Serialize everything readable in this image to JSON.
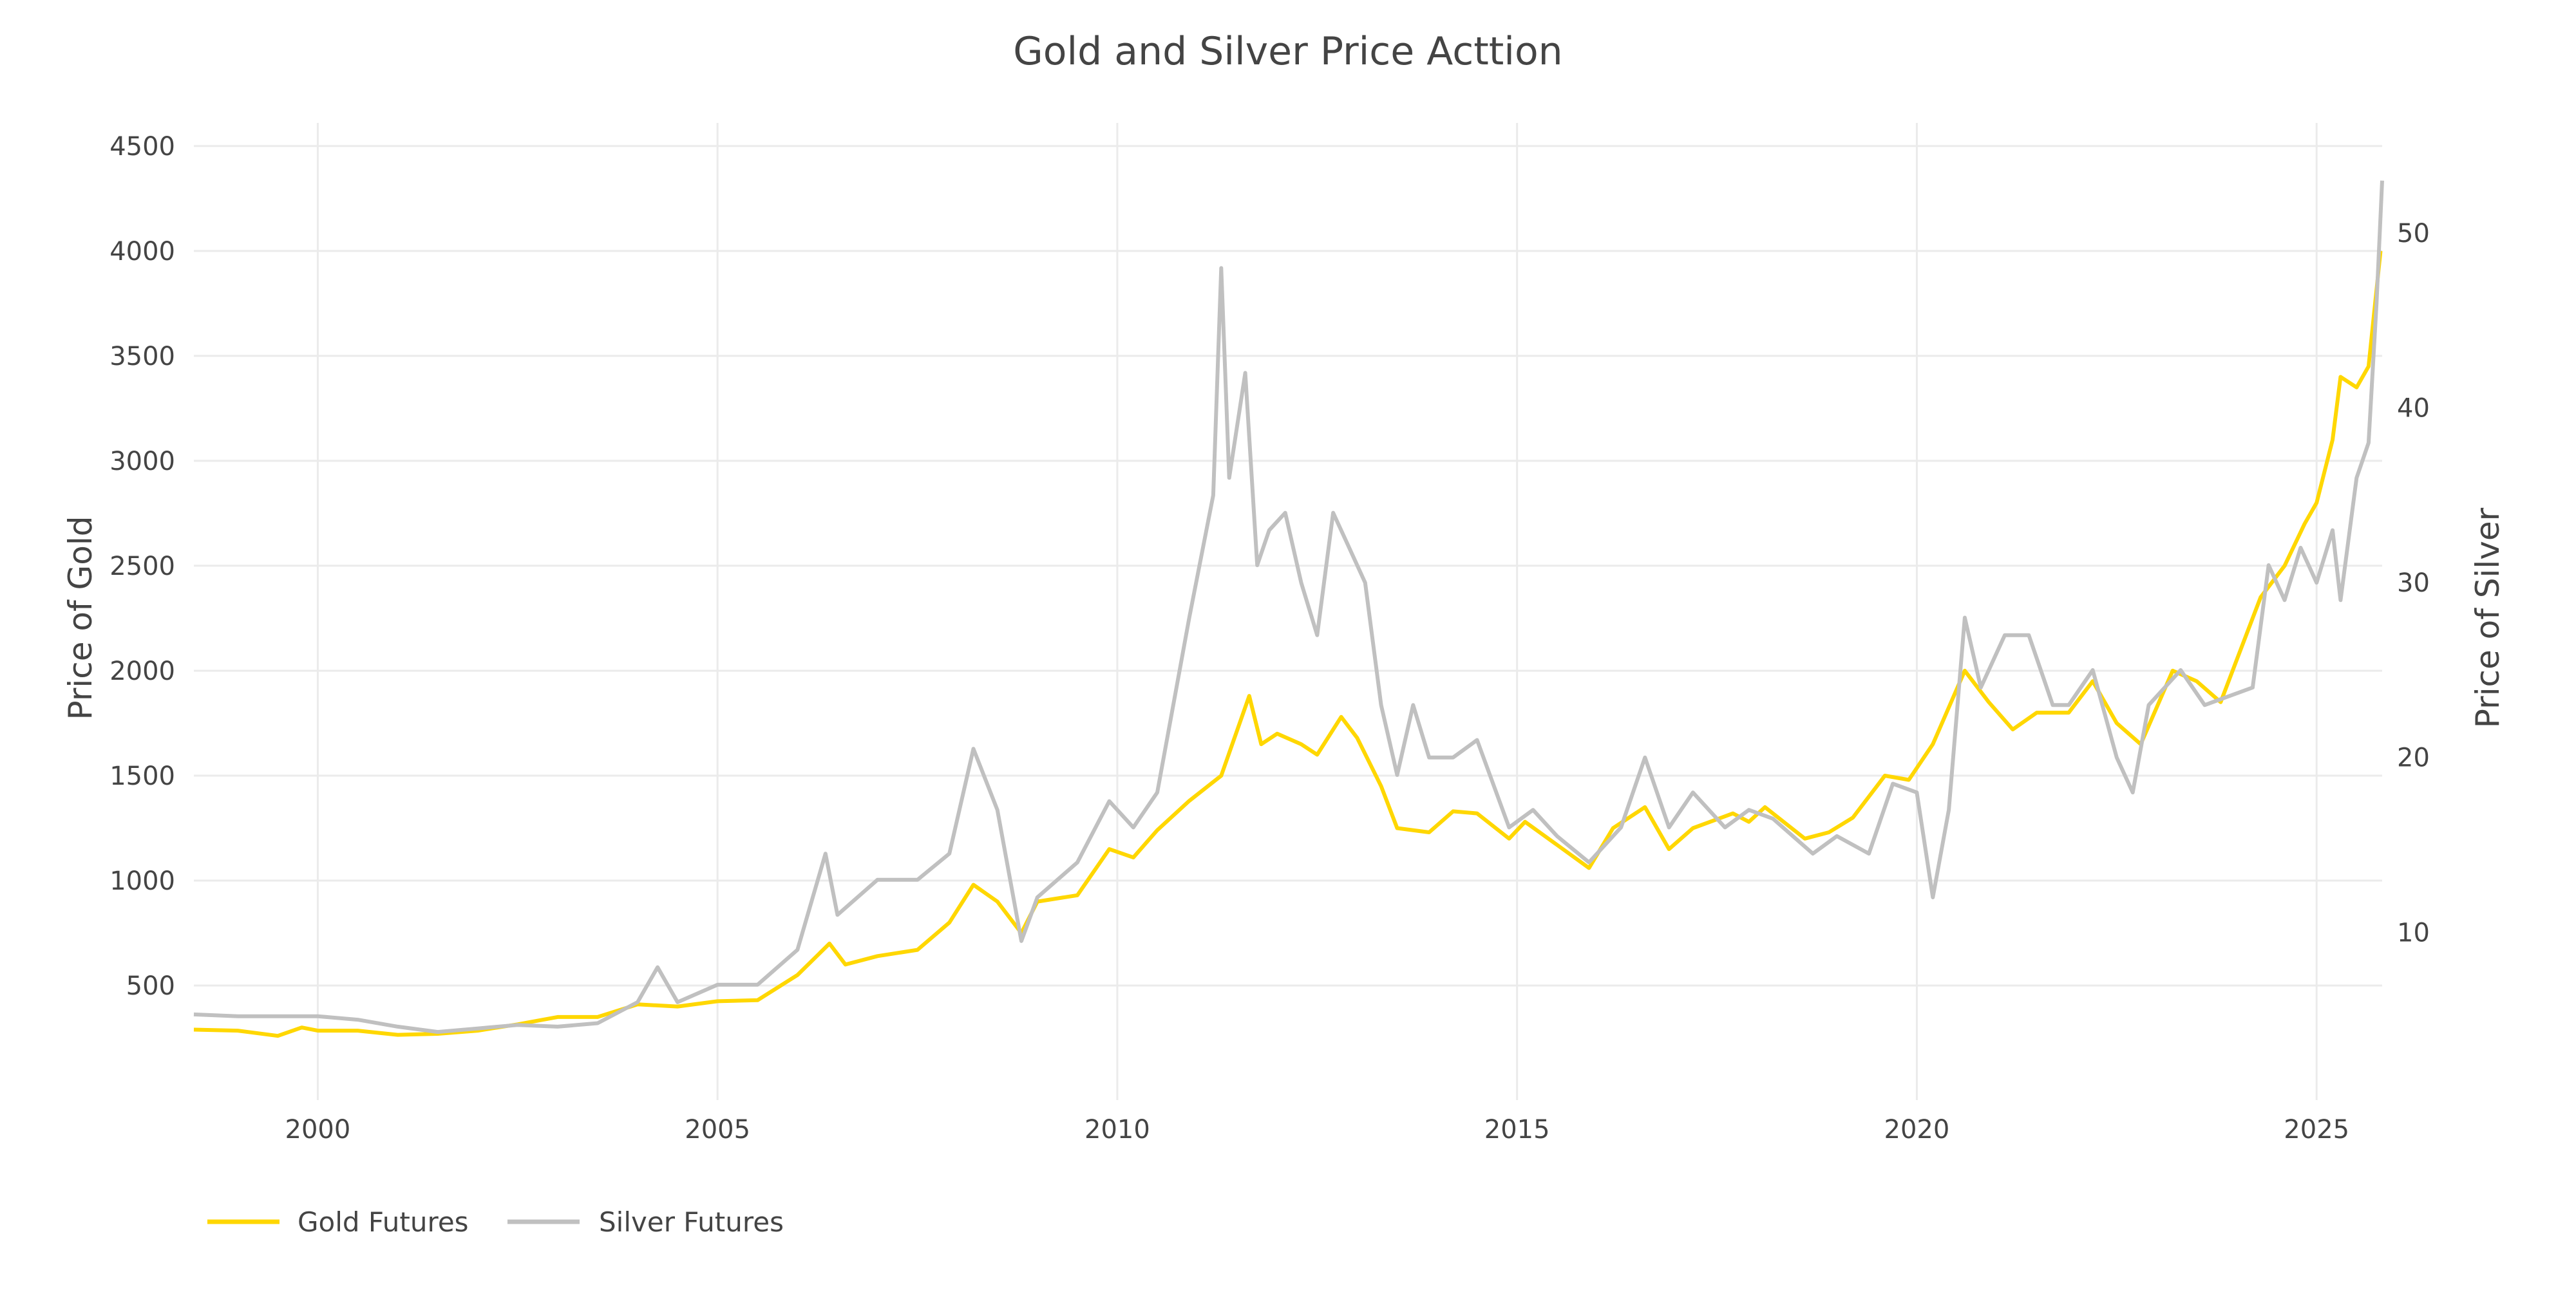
{
  "chart_data": {
    "type": "line",
    "title": "Gold and Silver Price Acttion",
    "xlabel": "",
    "ylabel": "Price of Gold",
    "y2label": "Price of Silver",
    "xlim": [
      1998.45,
      2025.82
    ],
    "ylim": [
      -46,
      4610
    ],
    "y2lim": [
      0.4,
      56.3
    ],
    "x_ticks": [
      2000,
      2005,
      2010,
      2015,
      2020,
      2025
    ],
    "y_ticks": [
      500,
      1000,
      1500,
      2000,
      2500,
      3000,
      3500,
      4000,
      4500
    ],
    "y2_ticks": [
      10,
      20,
      30,
      40,
      50
    ],
    "grid": true,
    "legend_position": "bottom-left",
    "colors": {
      "gold": "#FFD700",
      "silver": "#C0C0C0",
      "grid": "#EBEBEB",
      "text": "#444444"
    },
    "series": [
      {
        "name": "Gold Futures",
        "axis": "left",
        "x": [
          1998.45,
          1999,
          1999.5,
          1999.8,
          2000,
          2000.5,
          2001,
          2001.5,
          2002,
          2002.5,
          2003,
          2003.5,
          2004,
          2004.5,
          2005,
          2005.5,
          2006,
          2006.4,
          2006.6,
          2007,
          2007.5,
          2007.9,
          2008.2,
          2008.5,
          2008.8,
          2009,
          2009.5,
          2009.9,
          2010.2,
          2010.5,
          2010.9,
          2011.3,
          2011.65,
          2011.8,
          2012,
          2012.3,
          2012.5,
          2012.8,
          2013,
          2013.3,
          2013.5,
          2013.9,
          2014.2,
          2014.5,
          2014.9,
          2015.1,
          2015.5,
          2015.9,
          2016.2,
          2016.6,
          2016.9,
          2017.2,
          2017.7,
          2017.9,
          2018.1,
          2018.6,
          2018.9,
          2019.2,
          2019.6,
          2019.9,
          2020.2,
          2020.6,
          2020.9,
          2021.2,
          2021.5,
          2021.9,
          2022.2,
          2022.5,
          2022.8,
          2023.2,
          2023.5,
          2023.8,
          2024,
          2024.3,
          2024.6,
          2024.85,
          2025,
          2025.2,
          2025.3,
          2025.5,
          2025.65,
          2025.8
        ],
        "values": [
          290,
          285,
          260,
          300,
          285,
          285,
          265,
          270,
          285,
          315,
          350,
          350,
          410,
          400,
          425,
          430,
          550,
          700,
          600,
          640,
          670,
          800,
          980,
          900,
          750,
          900,
          930,
          1150,
          1110,
          1240,
          1380,
          1500,
          1880,
          1650,
          1700,
          1650,
          1600,
          1780,
          1680,
          1450,
          1250,
          1230,
          1330,
          1320,
          1200,
          1280,
          1170,
          1060,
          1250,
          1350,
          1150,
          1250,
          1320,
          1280,
          1350,
          1200,
          1230,
          1300,
          1500,
          1480,
          1650,
          2000,
          1850,
          1720,
          1800,
          1800,
          1950,
          1750,
          1650,
          2000,
          1950,
          1850,
          2050,
          2350,
          2500,
          2700,
          2800,
          3100,
          3400,
          3350,
          3450,
          4000
        ]
      },
      {
        "name": "Silver Futures",
        "axis": "right",
        "x": [
          1998.45,
          1999,
          1999.5,
          2000,
          2000.5,
          2001,
          2001.5,
          2002,
          2002.5,
          2003,
          2003.5,
          2004,
          2004.25,
          2004.5,
          2005,
          2005.5,
          2006,
          2006.35,
          2006.5,
          2007,
          2007.5,
          2007.9,
          2008.2,
          2008.5,
          2008.8,
          2009,
          2009.5,
          2009.9,
          2010.2,
          2010.5,
          2010.9,
          2011.2,
          2011.3,
          2011.4,
          2011.6,
          2011.75,
          2011.9,
          2012.1,
          2012.3,
          2012.5,
          2012.7,
          2012.9,
          2013.1,
          2013.3,
          2013.5,
          2013.7,
          2013.9,
          2014.2,
          2014.5,
          2014.9,
          2015.2,
          2015.5,
          2015.9,
          2016.3,
          2016.6,
          2016.9,
          2017.2,
          2017.6,
          2017.9,
          2018.2,
          2018.7,
          2019,
          2019.4,
          2019.7,
          2020,
          2020.2,
          2020.4,
          2020.6,
          2020.8,
          2021.1,
          2021.4,
          2021.7,
          2021.9,
          2022.2,
          2022.5,
          2022.7,
          2022.9,
          2023.3,
          2023.6,
          2023.9,
          2024.2,
          2024.4,
          2024.6,
          2024.8,
          2025,
          2025.2,
          2025.3,
          2025.5,
          2025.65,
          2025.75,
          2025.82
        ],
        "values": [
          5.3,
          5.2,
          5.2,
          5.2,
          5.0,
          4.6,
          4.3,
          4.5,
          4.7,
          4.6,
          4.8,
          6.0,
          8.0,
          6.0,
          7.0,
          7.0,
          9.0,
          14.5,
          11,
          13,
          13,
          14.5,
          20.5,
          17,
          9.5,
          12,
          14,
          17.5,
          16,
          18,
          28,
          35,
          48,
          36,
          42,
          31,
          33,
          34,
          30,
          27,
          34,
          32,
          30,
          23,
          19,
          23,
          20,
          20,
          21,
          16,
          17,
          15.5,
          14,
          16,
          20,
          16,
          18,
          16,
          17,
          16.5,
          14.5,
          15.5,
          14.5,
          18.5,
          18,
          12,
          17,
          28,
          24,
          27,
          27,
          23,
          23,
          25,
          20,
          18,
          23,
          25,
          23,
          23.5,
          24,
          31,
          29,
          32,
          30,
          33,
          29,
          36,
          38,
          46,
          53
        ]
      }
    ]
  }
}
